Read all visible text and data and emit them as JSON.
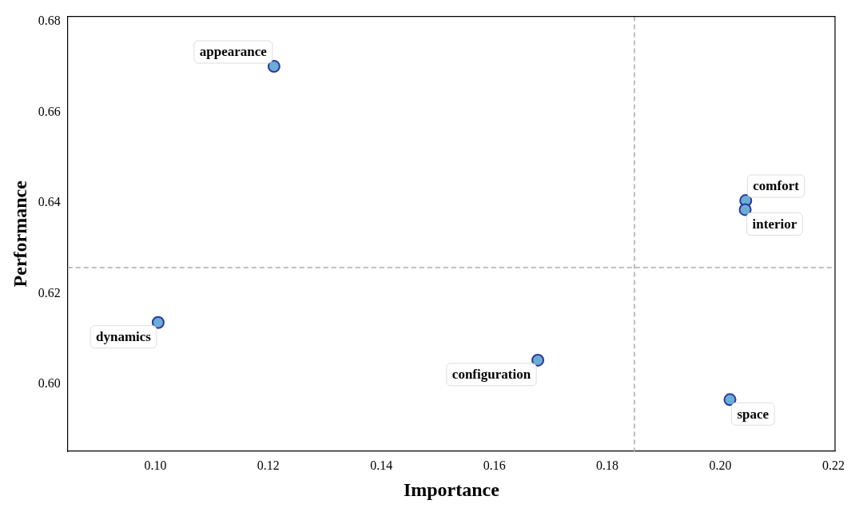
{
  "chart_data": {
    "type": "scatter",
    "xlabel": "Importance",
    "ylabel": "Performance",
    "x": [
      0.121,
      0.2045,
      0.2044,
      0.1005,
      0.1677,
      0.2017
    ],
    "series": [
      {
        "color": "#6aaed6",
        "values": [
          0.6701,
          0.6405,
          0.6385,
          0.6136,
          0.6053,
          0.5966
        ]
      }
    ],
    "xlim": [
      0.0845,
      0.2203
    ],
    "ylim": [
      0.5852,
      0.6811
    ],
    "xticks": [
      {
        "value": 0.1,
        "label": "0.10"
      },
      {
        "value": 0.12,
        "label": "0.12"
      },
      {
        "value": 0.14,
        "label": "0.14"
      },
      {
        "value": 0.16,
        "label": "0.16"
      },
      {
        "value": 0.18,
        "label": "0.18"
      },
      {
        "value": 0.2,
        "label": "0.20"
      },
      {
        "value": 0.22,
        "label": "0.22"
      }
    ],
    "yticks": [
      {
        "value": 0.6,
        "label": "0.60"
      },
      {
        "value": 0.62,
        "label": "0.62"
      },
      {
        "value": 0.64,
        "label": "0.64"
      },
      {
        "value": 0.66,
        "label": "0.66"
      },
      {
        "value": 0.68,
        "label": "0.68"
      }
    ],
    "ref_lines": [
      {
        "axis": "x",
        "value": 0.1848,
        "color": "#aaaaaa",
        "line_style": "dashed"
      },
      {
        "axis": "y",
        "value": 0.6257,
        "color": "#aaaaaa",
        "line_style": "dashed"
      }
    ],
    "annotations": [
      {
        "text": "appearance",
        "x": 0.121,
        "y": 0.6701
      },
      {
        "text": "comfort",
        "x": 0.2045,
        "y": 0.6405
      },
      {
        "text": "interior",
        "x": 0.2044,
        "y": 0.6385
      },
      {
        "text": "dynamics",
        "x": 0.1005,
        "y": 0.6136
      },
      {
        "text": "configuration",
        "x": 0.1677,
        "y": 0.6053
      },
      {
        "text": "space",
        "x": 0.2017,
        "y": 0.5966
      }
    ],
    "legend": false,
    "marker": "circle"
  }
}
